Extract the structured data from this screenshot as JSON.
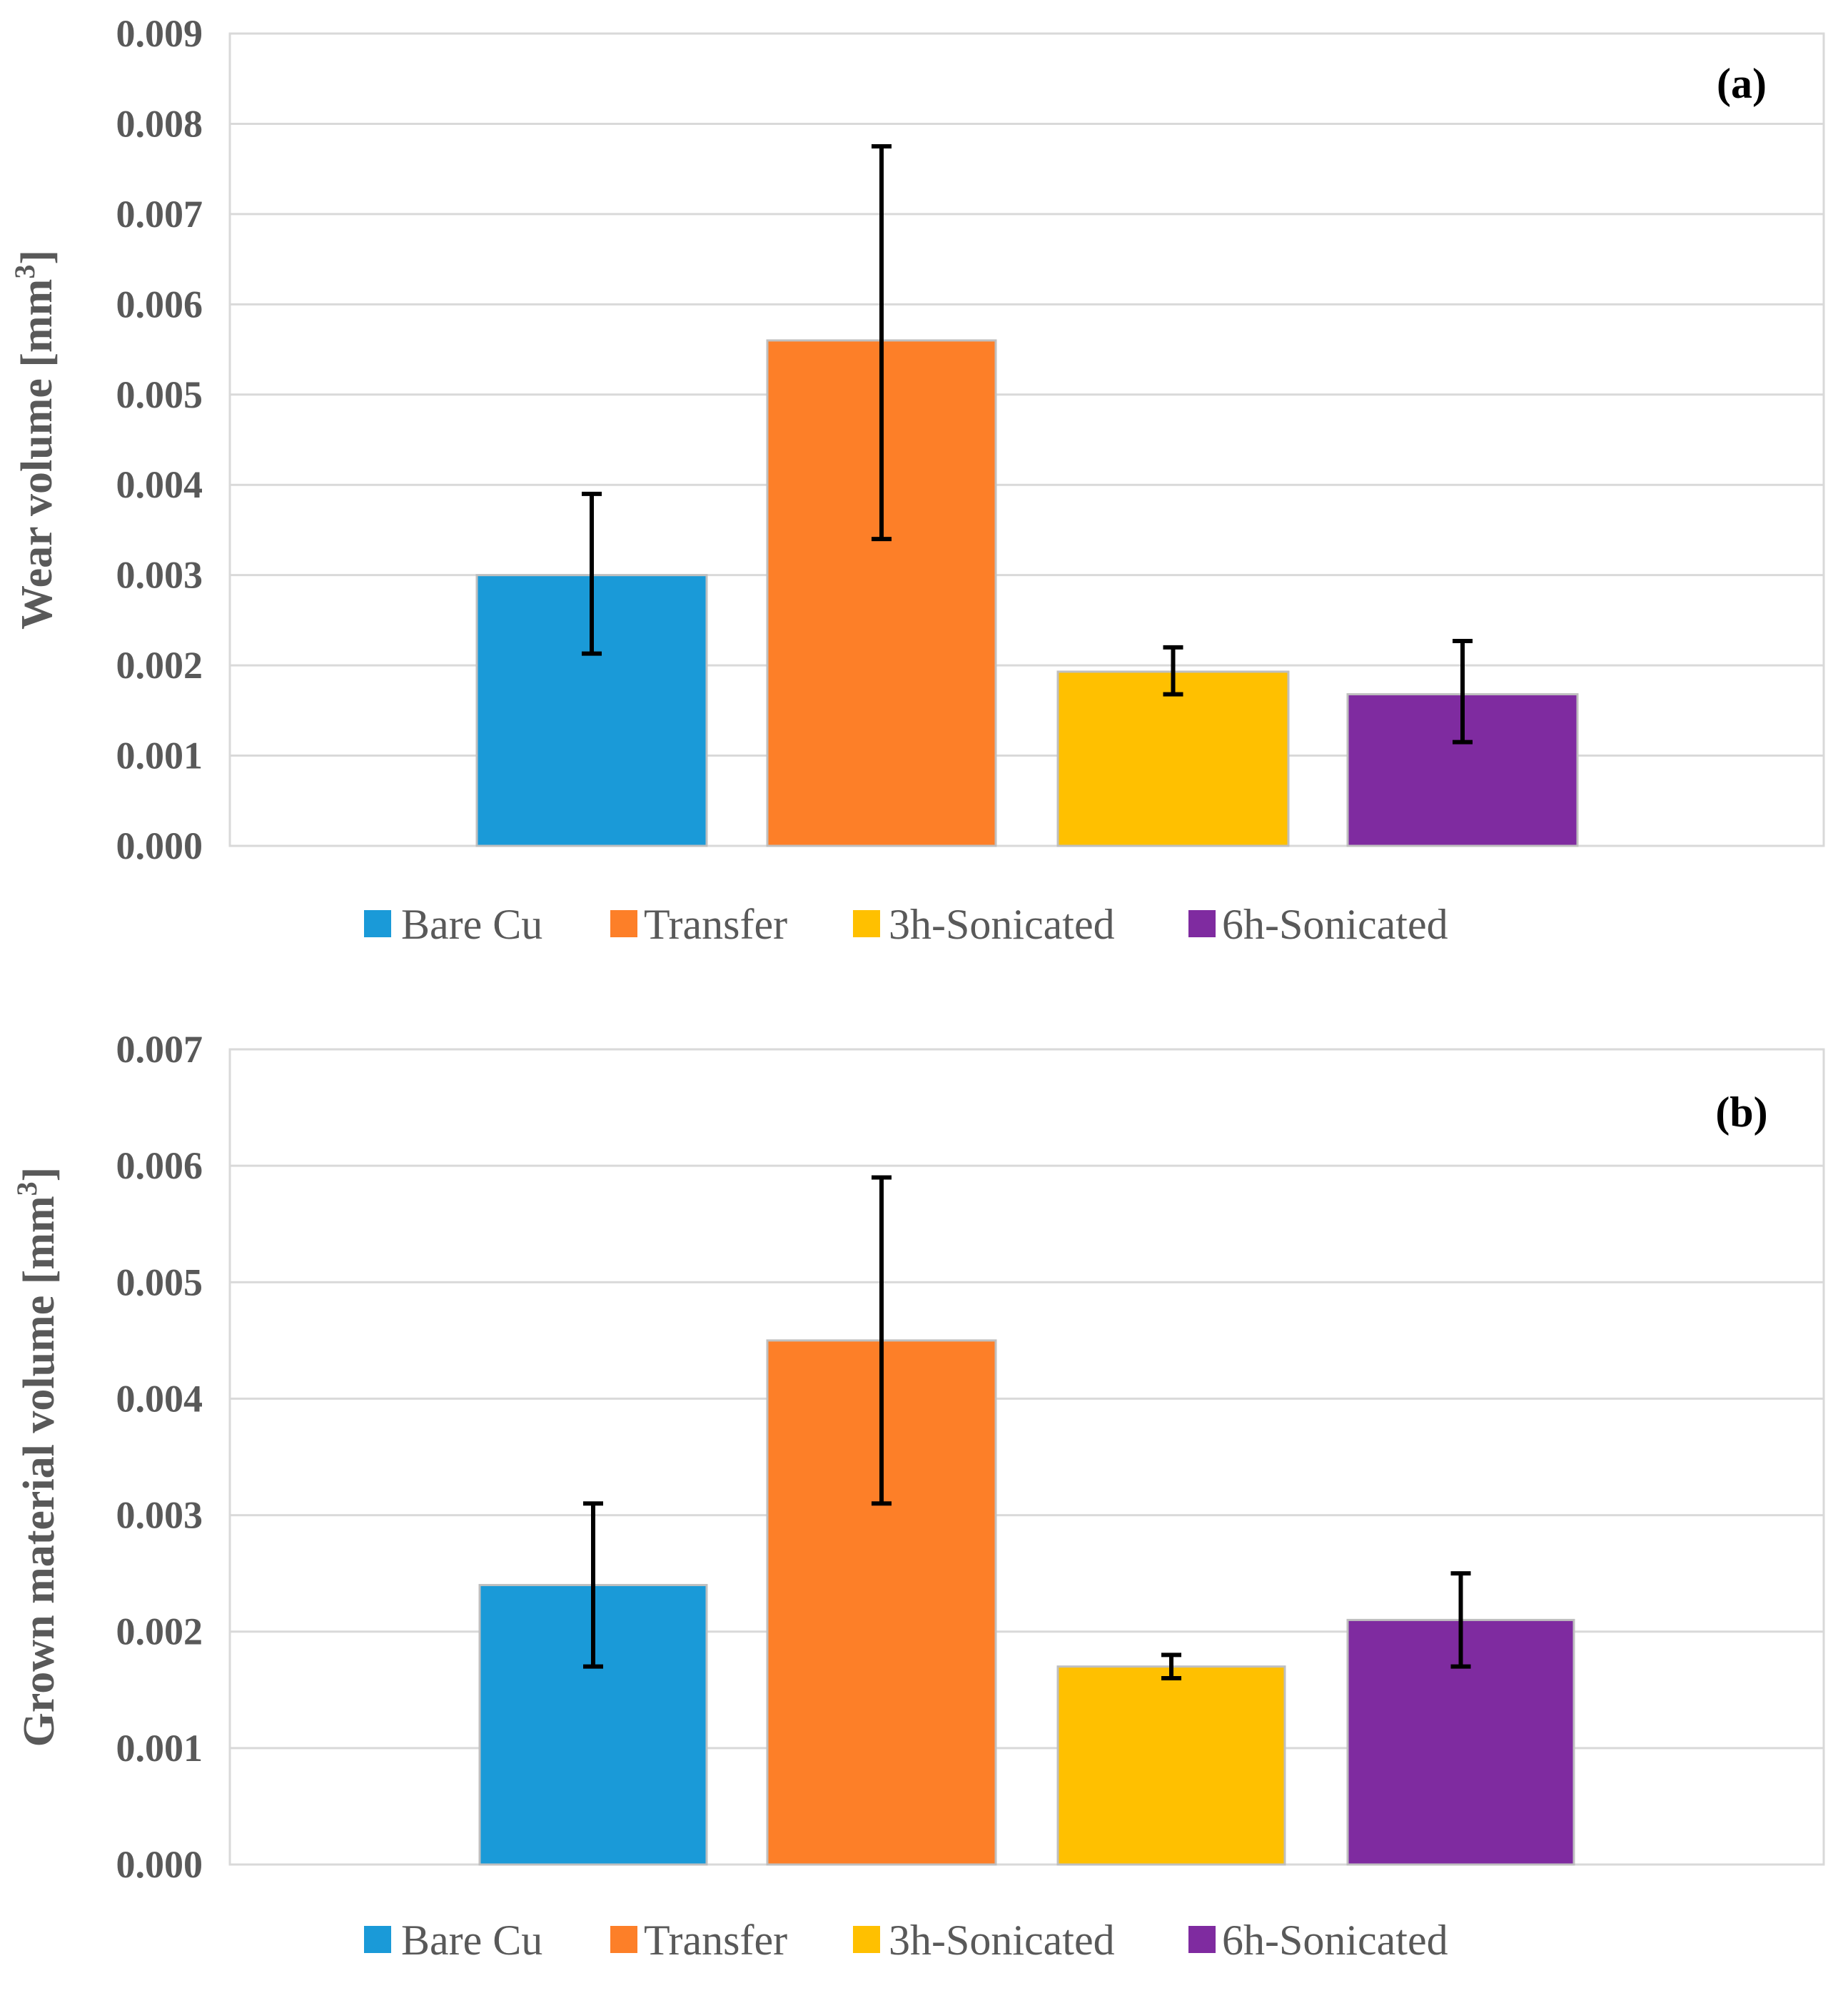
{
  "colors": {
    "bare_cu": "#1A9AD8",
    "transfer": "#FD7F28",
    "sonicated_3h": "#FFC000",
    "sonicated_6h": "#7F2BA0",
    "grid": "#D9D9D9",
    "axis_text": "#595959"
  },
  "chart_data": [
    {
      "type": "bar",
      "panel_label": "(a)",
      "ylabel": "Wear volume [mm",
      "ylabel_sup": "3",
      "ylabel_end": "]",
      "ylim": [
        0,
        0.009
      ],
      "yticks": [
        "0.000",
        "0.001",
        "0.002",
        "0.003",
        "0.004",
        "0.005",
        "0.006",
        "0.007",
        "0.008",
        "0.009"
      ],
      "grid": true,
      "legend_position": "bottom",
      "series": [
        {
          "name": "Bare Cu",
          "value": 0.003,
          "err_low": 0.00213,
          "err_high": 0.0039
        },
        {
          "name": "Transfer",
          "value": 0.0056,
          "err_low": 0.0034,
          "err_high": 0.00775
        },
        {
          "name": "3h-Sonicated",
          "value": 0.00193,
          "err_low": 0.00168,
          "err_high": 0.0022
        },
        {
          "name": "6h-Sonicated",
          "value": 0.00168,
          "err_low": 0.00115,
          "err_high": 0.00227
        }
      ]
    },
    {
      "type": "bar",
      "panel_label": "(b)",
      "ylabel": "Grown material volume [mm",
      "ylabel_sup": "3",
      "ylabel_end": "]",
      "ylim": [
        0,
        0.007
      ],
      "yticks": [
        "0.000",
        "0.001",
        "0.002",
        "0.003",
        "0.004",
        "0.005",
        "0.006",
        "0.007"
      ],
      "grid": true,
      "legend_position": "bottom",
      "series": [
        {
          "name": "Bare Cu",
          "value": 0.0024,
          "err_low": 0.0017,
          "err_high": 0.0031
        },
        {
          "name": "Transfer",
          "value": 0.0045,
          "err_low": 0.0031,
          "err_high": 0.0059
        },
        {
          "name": "3h-Sonicated",
          "value": 0.0017,
          "err_low": 0.0016,
          "err_high": 0.0018
        },
        {
          "name": "6h-Sonicated",
          "value": 0.0021,
          "err_low": 0.0017,
          "err_high": 0.0025
        }
      ]
    }
  ]
}
